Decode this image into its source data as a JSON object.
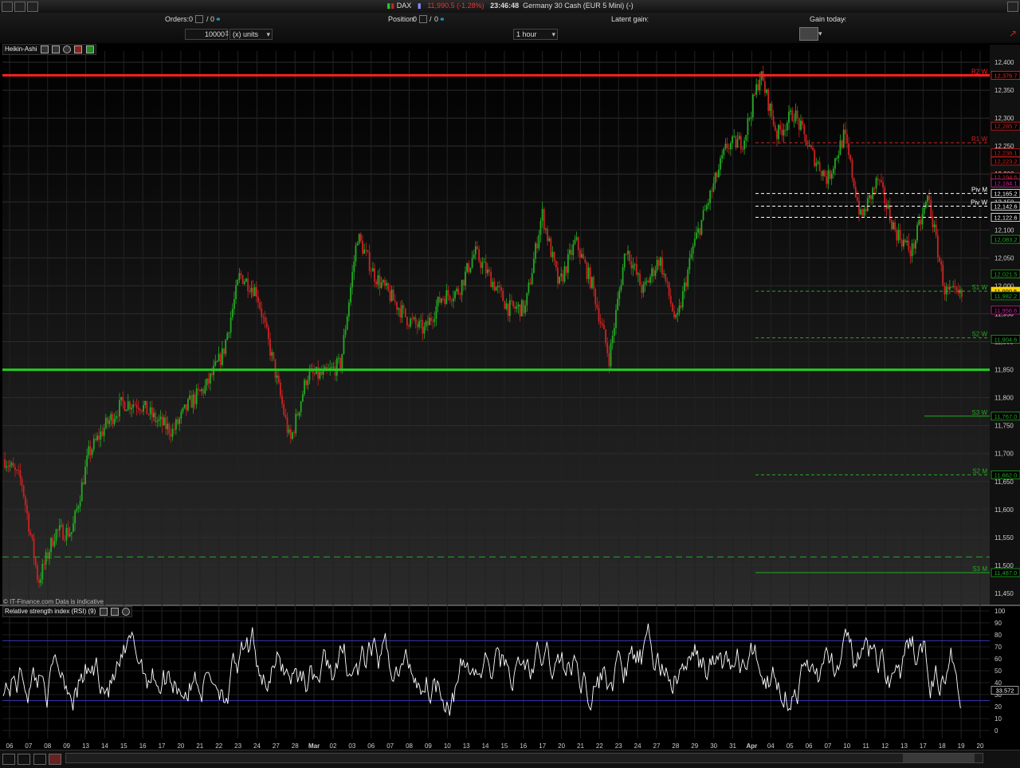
{
  "titlebar": {
    "instrument": "DAX",
    "price": "11,990.5 (-1.28%)",
    "time": "23:46:48",
    "description": "Germany 30 Cash (EUR 5 Mini) (-)"
  },
  "toolbar": {
    "orders_label": "Orders:",
    "orders_value": "0",
    "orders_value2": "0",
    "position_label": "Position:",
    "position_value": "0",
    "position_value2": "0",
    "latent_gain_label": "Latent gain:",
    "latent_gain_value": "-",
    "gain_today_label": "Gain today:",
    "gain_today_value": "-",
    "quantity": "10000",
    "units": "(x) units",
    "timeframe": "1 hour"
  },
  "main_panel": {
    "label": "Heikin-Ashi",
    "copyright": "© IT-Finance.com  Data is indicative"
  },
  "rsi_panel": {
    "label": "Relative strength index (RSI) (9)"
  },
  "colors": {
    "up": "#22aa22",
    "down": "#cc2222",
    "resistance": "#ff2020",
    "support": "#22cc22",
    "rsi_line": "#ffffff",
    "rsi_band": "#3333aa",
    "current_price_bg": "#ffd200"
  },
  "chart_data": [
    {
      "type": "candlestick",
      "ylim": [
        11430,
        12420
      ],
      "yticks": [
        11450,
        11500,
        11550,
        11600,
        11650,
        11700,
        11750,
        11800,
        11850,
        11900,
        11950,
        12000,
        12050,
        12100,
        12150,
        12200,
        12250,
        12300,
        12350,
        12400
      ],
      "ytick_labels": [
        "11,450",
        "11,500",
        "11,550",
        "11,600",
        "11,650",
        "11,700",
        "11,750",
        "11,800",
        "11,850",
        "11,900",
        "11,950",
        "12,000",
        "12,050",
        "12,100",
        "12,150",
        "12,200",
        "12,250",
        "12,300",
        "12,350",
        "12,400"
      ],
      "x_labels": [
        "06",
        "07",
        "08",
        "09",
        "13",
        "14",
        "15",
        "16",
        "17",
        "20",
        "21",
        "22",
        "23",
        "24",
        "27",
        "28",
        "Mar",
        "02",
        "03",
        "06",
        "07",
        "08",
        "09",
        "10",
        "13",
        "14",
        "15",
        "16",
        "17",
        "20",
        "21",
        "22",
        "23",
        "24",
        "27",
        "28",
        "29",
        "30",
        "31",
        "Apr",
        "04",
        "05",
        "06",
        "07",
        "10",
        "11",
        "12",
        "13",
        "17",
        "18",
        "19",
        "20"
      ],
      "path_points": [
        11690,
        11650,
        11470,
        11560,
        11560,
        11700,
        11750,
        11790,
        11790,
        11760,
        11740,
        11790,
        11820,
        11880,
        12020,
        11990,
        11860,
        11720,
        11840,
        11840,
        11860,
        12090,
        12020,
        11980,
        11940,
        11920,
        11980,
        11990,
        12060,
        12010,
        11960,
        11960,
        12130,
        12000,
        12080,
        12000,
        11870,
        12070,
        11990,
        12050,
        11930,
        12070,
        12160,
        12250,
        12260,
        12380,
        12270,
        12310,
        12240,
        12190,
        12270,
        12120,
        12190,
        12100,
        12060,
        12160,
        11990,
        11980
      ],
      "horizontal_lines": [
        {
          "label": "R2 W",
          "value": 12376.7,
          "style": "solid-thick",
          "color": "#ff2020"
        },
        {
          "label": "",
          "value": 11850,
          "style": "solid-thick",
          "color": "#22cc22"
        },
        {
          "label": "R1 W",
          "value": 12255.9,
          "style": "dash",
          "color": "#cc2222"
        },
        {
          "label": "Piv M",
          "value": 12165.2,
          "style": "dash",
          "color": "#ffffff"
        },
        {
          "label": "Piv W",
          "value": 12142.6,
          "style": "dash",
          "color": "#ffffff"
        },
        {
          "label": "",
          "value": 12122.6,
          "style": "dash",
          "color": "#ffffff"
        },
        {
          "label": "S1 W",
          "value": 11990.5,
          "style": "dash",
          "color": "#22aa22"
        },
        {
          "label": "S2 W",
          "value": 11907,
          "style": "dash",
          "color": "#22aa22"
        },
        {
          "label": "S3 W",
          "value": 11767,
          "style": "solid",
          "color": "#22aa22"
        },
        {
          "label": "S2 M",
          "value": 11662,
          "style": "dash",
          "color": "#22aa22"
        },
        {
          "label": "S3 M",
          "value": 11487,
          "style": "solid",
          "color": "#22aa22"
        },
        {
          "label": "",
          "value": 11515,
          "style": "dash",
          "color": "#22aa22"
        }
      ],
      "price_tags": [
        {
          "value": 12376.7,
          "label": "12,376.7",
          "color": "#ff2020"
        },
        {
          "value": 12285.7,
          "label": "12,285.7",
          "color": "#cc2222"
        },
        {
          "value": 12238.1,
          "label": "12,238.1",
          "color": "#cc2222"
        },
        {
          "value": 12223.2,
          "label": "12,223.2",
          "color": "#cc2222"
        },
        {
          "value": 12194.6,
          "label": "12,194.6",
          "color": "#cc2222"
        },
        {
          "value": 12184.1,
          "label": "12,184.1",
          "color": "#cc2299"
        },
        {
          "value": 12165.2,
          "label": "12,165.2",
          "color": "#ffffff"
        },
        {
          "value": 12142.6,
          "label": "12,142.6",
          "color": "#ffffff"
        },
        {
          "value": 12122.6,
          "label": "12,122.6",
          "color": "#ffffff"
        },
        {
          "value": 12083.2,
          "label": "12,083.2",
          "color": "#22aa22"
        },
        {
          "value": 12021.5,
          "label": "12,021.5",
          "color": "#22aa22"
        },
        {
          "value": 11990.5,
          "label": "11,990.5",
          "color": "#ffd200"
        },
        {
          "value": 11982.2,
          "label": "11,982.2",
          "color": "#22aa22"
        },
        {
          "value": 11956.6,
          "label": "11,956.6",
          "color": "#cc2299"
        },
        {
          "value": 11904.6,
          "label": "11,904.6",
          "color": "#22aa22"
        },
        {
          "value": 11767.0,
          "label": "11,767.0",
          "color": "#22aa22"
        },
        {
          "value": 11662.0,
          "label": "11,662.0",
          "color": "#22aa22"
        },
        {
          "value": 11487.0,
          "label": "11,487.0",
          "color": "#22aa22"
        }
      ]
    },
    {
      "type": "line",
      "ylim": [
        0,
        100
      ],
      "yticks": [
        0,
        10,
        20,
        30,
        40,
        50,
        60,
        70,
        80,
        90,
        100
      ],
      "ytick_labels": [
        "0",
        "10",
        "20",
        "30",
        "40",
        "50",
        "60",
        "70",
        "80",
        "90",
        "100"
      ],
      "bands": [
        25,
        75
      ],
      "current_value": "33.572",
      "current": 33.572
    }
  ]
}
